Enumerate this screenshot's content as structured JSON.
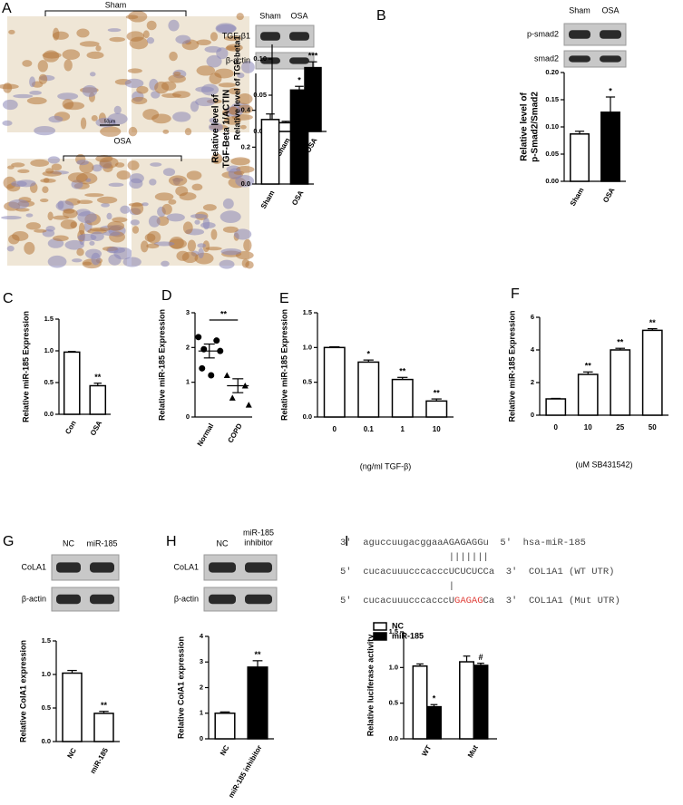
{
  "panel_labels": [
    "A",
    "B",
    "C",
    "D",
    "E",
    "F",
    "G",
    "H",
    "I"
  ],
  "histology": {
    "groups": [
      "Sham",
      "OSA"
    ],
    "scale_bar": "50μm"
  },
  "blots": [
    {
      "lanes": [
        "Sham",
        "OSA"
      ],
      "rows": [
        "TGF-β1",
        "β-actin"
      ]
    },
    {
      "lanes": [
        "Sham",
        "OSA"
      ],
      "rows": [
        "p-smad2",
        "smad2"
      ]
    },
    {
      "lanes": [
        "NC",
        "miR-185"
      ],
      "rows": [
        "CoLA1",
        "β-actin"
      ]
    },
    {
      "lanes": [
        "NC",
        [
          "miR-185",
          "inhibitor"
        ]
      ],
      "rows": [
        "CoLA1",
        "β-actin"
      ]
    }
  ],
  "sequence": {
    "highlight_color": "#e0403a",
    "lines": [
      {
        "parts": [
          "3'  aguccuugacggaaAGAGAGGu  5'  hsa-miR-185"
        ]
      },
      {
        "parts": [
          "|||||||"
        ]
      },
      {
        "parts": [
          "5'  cucacuuucccacccUCUCUCCa  3'  COL1A1 (WT UTR)"
        ]
      },
      {
        "parts": [
          "|"
        ]
      },
      {
        "parts": [
          "5'  cucacuuucccacccU",
          "GAGAG",
          "Ca  3'  COL1A1 (Mut UTR)"
        ],
        "highlight": 1
      }
    ]
  },
  "chart_data": [
    {
      "type": "bar",
      "ylabel": [
        "Relative level of TGF-beta1"
      ],
      "categories": [
        "Sham",
        "OSA"
      ],
      "values": [
        0.012,
        0.088
      ],
      "errors": [
        0.002,
        0.008
      ],
      "colors": [
        "#ffffff",
        "#000000"
      ],
      "annotations": [
        null,
        "***"
      ],
      "ylim": [
        0,
        0.12
      ],
      "yticks": [
        {
          "value": 0,
          "label": "0.00"
        },
        0.05,
        {
          "value": 0.1,
          "label": "0.10"
        }
      ]
    },
    {
      "type": "bar",
      "ylabel": [
        "Relative level of",
        "TGF-Beta 1/ACTIN"
      ],
      "categories": [
        "Sham",
        "OSA"
      ],
      "values": [
        0.35,
        0.51
      ],
      "errors": [
        0.03,
        0.02
      ],
      "colors": [
        "#ffffff",
        "#000000"
      ],
      "annotations": [
        null,
        "*"
      ],
      "ylim": [
        0,
        0.6
      ],
      "yticks": [
        {
          "value": 0,
          "label": "0.0"
        },
        0.2,
        0.4
      ]
    },
    {
      "type": "bar",
      "ylabel": [
        "Relative level of",
        "p-Smad2/Smad2"
      ],
      "categories": [
        "Sham",
        "OSA"
      ],
      "values": [
        0.087,
        0.127
      ],
      "errors": [
        0.005,
        0.028
      ],
      "colors": [
        "#ffffff",
        "#000000"
      ],
      "annotations": [
        null,
        "*"
      ],
      "ylim": [
        0,
        0.2
      ],
      "yticks": [
        {
          "value": 0,
          "label": "0.00"
        },
        0.05,
        {
          "value": 0.1,
          "label": "0.10"
        },
        0.15,
        {
          "value": 0.2,
          "label": "0.20"
        }
      ]
    },
    {
      "type": "bar",
      "ylabel": [
        "Relative miR-185 Expression"
      ],
      "categories": [
        "Con",
        "OSA"
      ],
      "values": [
        0.98,
        0.45
      ],
      "errors": [
        0.01,
        0.04
      ],
      "colors": [
        "#ffffff",
        "#ffffff"
      ],
      "annotations": [
        null,
        "**"
      ],
      "ylim": [
        0,
        1.5
      ],
      "yticks": [
        {
          "value": 0,
          "label": "0.0"
        },
        0.5,
        {
          "value": 1,
          "label": "1.0"
        },
        1.5
      ]
    },
    {
      "type": "dot",
      "ylabel": [
        "Relative miR-185 Expression"
      ],
      "categories": [
        "Normal",
        "COPD"
      ],
      "groups": [
        [
          2.3,
          2.2,
          1.95,
          1.9,
          1.4,
          1.2
        ],
        [
          1.2,
          0.9,
          0.55,
          0.35
        ]
      ],
      "means": [
        1.9,
        0.9
      ],
      "errors": [
        0.2,
        0.2
      ],
      "bracket_label": "**",
      "ylim": [
        0,
        3
      ],
      "yticks": [
        0,
        1,
        2,
        3
      ]
    },
    {
      "type": "bar",
      "ylabel": [
        "Relative miR-185 Expression"
      ],
      "xlabel": "(ng/ml TGF-β)",
      "categories": [
        "0",
        "0.1",
        "1",
        "10"
      ],
      "values": [
        1.0,
        0.79,
        0.54,
        0.23
      ],
      "errors": [
        0.01,
        0.03,
        0.03,
        0.03
      ],
      "colors": [
        "#ffffff",
        "#ffffff",
        "#ffffff",
        "#ffffff"
      ],
      "annotations": [
        null,
        "*",
        "**",
        "**"
      ],
      "ylim": [
        0,
        1.5
      ],
      "yticks": [
        {
          "value": 0,
          "label": "0.0"
        },
        0.5,
        {
          "value": 1,
          "label": "1.0"
        },
        1.5
      ]
    },
    {
      "type": "bar",
      "ylabel": [
        "Relative miR-185 Expression"
      ],
      "xlabel": "(uM SB431542)",
      "categories": [
        "0",
        "10",
        "25",
        "50"
      ],
      "values": [
        1.0,
        2.5,
        4.0,
        5.2
      ],
      "errors": [
        0.03,
        0.15,
        0.1,
        0.1
      ],
      "colors": [
        "#ffffff",
        "#ffffff",
        "#ffffff",
        "#ffffff"
      ],
      "annotations": [
        null,
        "**",
        "**",
        "**"
      ],
      "ylim": [
        0,
        6
      ],
      "yticks": [
        0,
        2,
        4,
        6
      ]
    },
    {
      "type": "bar",
      "ylabel": [
        "Relative CoIA1 expression"
      ],
      "categories": [
        "NC",
        "miR-185"
      ],
      "values": [
        1.02,
        0.42
      ],
      "errors": [
        0.04,
        0.03
      ],
      "colors": [
        "#ffffff",
        "#ffffff"
      ],
      "annotations": [
        null,
        "**"
      ],
      "ylim": [
        0,
        1.5
      ],
      "yticks": [
        {
          "value": 0,
          "label": "0.0"
        },
        0.5,
        {
          "value": 1,
          "label": "1.0"
        },
        1.5
      ]
    },
    {
      "type": "bar",
      "ylabel": [
        "Relative CoIA1 expression"
      ],
      "categories": [
        "NC",
        "miR-185 inhibitor"
      ],
      "values": [
        1.0,
        2.8
      ],
      "errors": [
        0.05,
        0.25
      ],
      "colors": [
        "#ffffff",
        "#000000"
      ],
      "annotations": [
        null,
        "**"
      ],
      "ylim": [
        0,
        4
      ],
      "yticks": [
        0,
        1,
        2,
        3,
        4
      ]
    },
    {
      "type": "grouped",
      "ylabel": [
        "Relative luciferase activity"
      ],
      "categories": [
        "WT",
        "Mut"
      ],
      "series": [
        {
          "name": "NC",
          "color": "#ffffff",
          "values": [
            1.02,
            1.08
          ],
          "errors": [
            0.03,
            0.08
          ],
          "annotations": [
            null,
            null
          ]
        },
        {
          "name": "miR-185",
          "color": "#000000",
          "values": [
            0.45,
            1.03
          ],
          "errors": [
            0.03,
            0.03
          ],
          "annotations": [
            "*",
            "#"
          ]
        }
      ],
      "ylim": [
        0,
        1.5
      ],
      "yticks": [
        {
          "value": 0,
          "label": "0.0"
        },
        0.5,
        {
          "value": 1,
          "label": "1.0"
        },
        1.5
      ]
    }
  ]
}
